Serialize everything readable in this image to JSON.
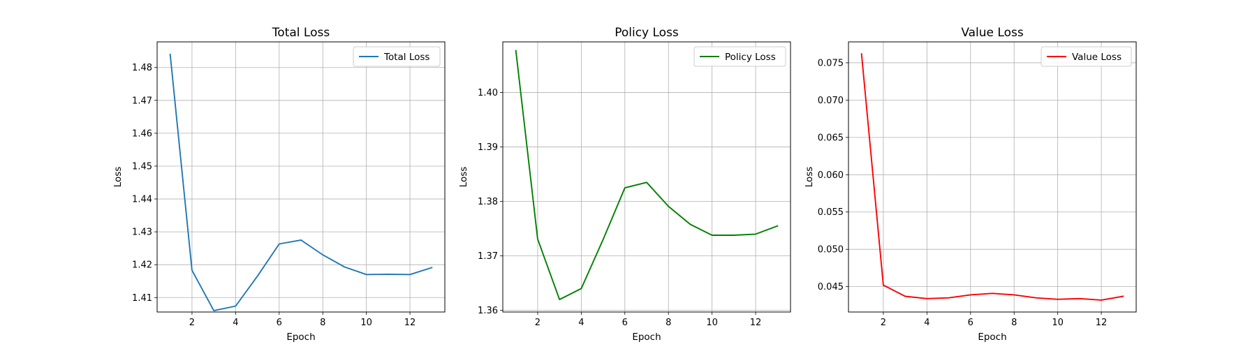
{
  "chart_data": [
    {
      "type": "line",
      "title": "Total Loss",
      "xlabel": "Epoch",
      "ylabel": "Loss",
      "xlim": [
        0.4,
        13.6
      ],
      "ylim": [
        1.4056,
        1.4878
      ],
      "xticks": [
        2,
        4,
        6,
        8,
        10,
        12
      ],
      "xtick_labels": [
        "2",
        "4",
        "6",
        "8",
        "10",
        "12"
      ],
      "yticks": [
        1.41,
        1.42,
        1.43,
        1.44,
        1.45,
        1.46,
        1.47,
        1.48
      ],
      "ytick_labels": [
        "1.41",
        "1.42",
        "1.43",
        "1.44",
        "1.45",
        "1.46",
        "1.47",
        "1.48"
      ],
      "grid": true,
      "legend": "upper right",
      "series": [
        {
          "name": "Total Loss",
          "color": "#1f77b4",
          "x": [
            1,
            2,
            3,
            4,
            5,
            6,
            7,
            8,
            9,
            10,
            11,
            12,
            13
          ],
          "y": [
            1.484,
            1.4183,
            1.406,
            1.4074,
            1.4165,
            1.4263,
            1.4275,
            1.423,
            1.4193,
            1.417,
            1.4171,
            1.417,
            1.4191
          ]
        }
      ]
    },
    {
      "type": "line",
      "title": "Policy Loss",
      "xlabel": "Epoch",
      "ylabel": "Loss",
      "xlim": [
        0.4,
        13.6
      ],
      "ylim": [
        1.3597,
        1.4093
      ],
      "xticks": [
        2,
        4,
        6,
        8,
        10,
        12
      ],
      "xtick_labels": [
        "2",
        "4",
        "6",
        "8",
        "10",
        "12"
      ],
      "yticks": [
        1.36,
        1.37,
        1.38,
        1.39,
        1.4
      ],
      "ytick_labels": [
        "1.36",
        "1.37",
        "1.38",
        "1.39",
        "1.40"
      ],
      "grid": true,
      "legend": "upper right",
      "series": [
        {
          "name": "Policy Loss",
          "color": "#008000",
          "x": [
            1,
            2,
            3,
            4,
            5,
            6,
            7,
            8,
            9,
            10,
            11,
            12,
            13
          ],
          "y": [
            1.4077,
            1.3731,
            1.362,
            1.364,
            1.373,
            1.3825,
            1.3835,
            1.3791,
            1.3758,
            1.3738,
            1.3738,
            1.374,
            1.3755
          ]
        }
      ]
    },
    {
      "type": "line",
      "title": "Value Loss",
      "xlabel": "Epoch",
      "ylabel": "Loss",
      "xlim": [
        0.4,
        13.6
      ],
      "ylim": [
        0.0416,
        0.0778
      ],
      "xticks": [
        2,
        4,
        6,
        8,
        10,
        12
      ],
      "xtick_labels": [
        "2",
        "4",
        "6",
        "8",
        "10",
        "12"
      ],
      "yticks": [
        0.045,
        0.05,
        0.055,
        0.06,
        0.065,
        0.07,
        0.075
      ],
      "ytick_labels": [
        "0.045",
        "0.050",
        "0.055",
        "0.060",
        "0.065",
        "0.070",
        "0.075"
      ],
      "grid": true,
      "legend": "upper right",
      "series": [
        {
          "name": "Value Loss",
          "color": "#ff0000",
          "x": [
            1,
            2,
            3,
            4,
            5,
            6,
            7,
            8,
            9,
            10,
            11,
            12,
            13
          ],
          "y": [
            0.0762,
            0.0452,
            0.0437,
            0.0434,
            0.0435,
            0.0439,
            0.0441,
            0.0439,
            0.0435,
            0.0433,
            0.0434,
            0.0432,
            0.0437
          ]
        }
      ]
    }
  ]
}
